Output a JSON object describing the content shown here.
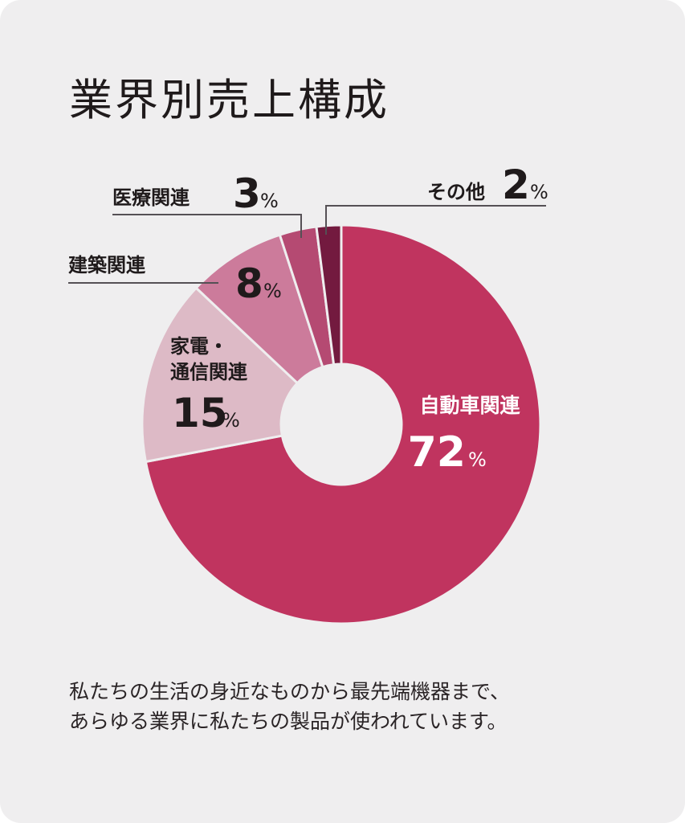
{
  "title": "業界別売上構成",
  "caption": {
    "line1": "私たちの生活の身近なものから最先端機器まで、",
    "line2": "あらゆる業界に私たちの製品が使われています。"
  },
  "chart_data": {
    "type": "pie",
    "variant": "donut",
    "title": "業界別売上構成",
    "unit": "%",
    "slices": [
      {
        "label": "自動車関連",
        "value": 72,
        "color": "#c0345f"
      },
      {
        "label": "家電・通信関連",
        "value": 15,
        "color": "#ddbac6"
      },
      {
        "label": "建築関連",
        "value": 8,
        "color": "#cc7b9b"
      },
      {
        "label": "医療関連",
        "value": 3,
        "color": "#b54a72"
      },
      {
        "label": "その他",
        "value": 2,
        "color": "#731a3f"
      }
    ]
  },
  "colors": {
    "background": "#efeeef",
    "leader": "#555055",
    "separator": "#efeeef"
  }
}
